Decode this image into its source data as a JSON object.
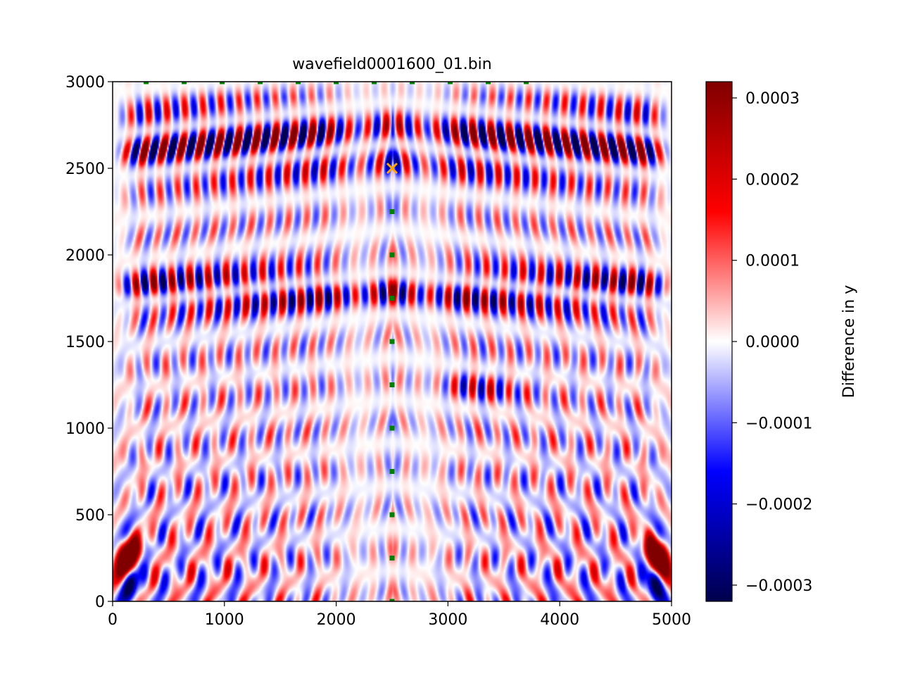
{
  "chart_data": {
    "type": "heatmap",
    "title": "wavefield0001600_01.bin",
    "xlabel": "",
    "ylabel": "",
    "xlim": [
      0,
      5000
    ],
    "ylim": [
      0,
      3000
    ],
    "x_ticks": [
      0,
      1000,
      2000,
      3000,
      4000,
      5000
    ],
    "y_ticks": [
      0,
      500,
      1000,
      1500,
      2000,
      2500,
      3000
    ],
    "x_tick_labels": [
      "0",
      "1000",
      "2000",
      "3000",
      "4000",
      "5000"
    ],
    "y_tick_labels": [
      "0",
      "500",
      "1000",
      "1500",
      "2000",
      "2500",
      "3000"
    ],
    "colormap": "seismic",
    "colorbar": {
      "label": "Difference in y",
      "vmin": -0.00032,
      "vmax": 0.00032,
      "ticks": [
        0.0003,
        0.0002,
        0.0001,
        0.0,
        -0.0001,
        -0.0002,
        -0.0003
      ],
      "tick_labels": [
        "0.0003",
        "0.0002",
        "0.0001",
        "0.0000",
        "−0.0001",
        "−0.0002",
        "−0.0003"
      ]
    },
    "source": {
      "x": 2500,
      "y": 2500,
      "marker": "x",
      "color": "#ffa500"
    },
    "receivers_vertical": {
      "x": 2500,
      "y": [
        0,
        250,
        500,
        750,
        1000,
        1250,
        1500,
        1750,
        2000,
        2250
      ],
      "color": "#008000"
    },
    "receivers_top": {
      "y": 3000,
      "x": [
        300,
        640,
        980,
        1320,
        1660,
        2000,
        2340,
        2680,
        3020,
        3360,
        3700
      ],
      "color": "#008000"
    }
  }
}
